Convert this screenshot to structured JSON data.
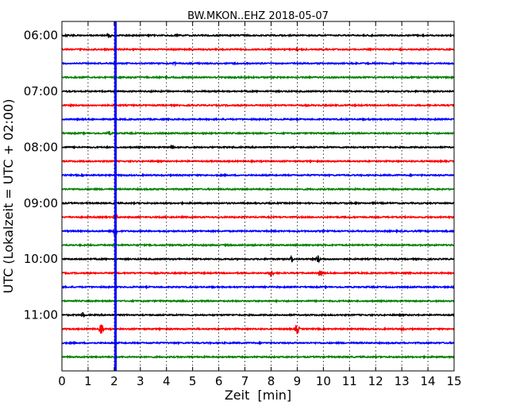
{
  "chart_data": {
    "type": "line",
    "title": "BW.MKON..EHZ 2018-05-07",
    "xlabel": "Zeit  [min]",
    "ylabel": "UTC (Lokalzeit = UTC + 02:00)",
    "x_ticks": [
      0,
      1,
      2,
      3,
      4,
      5,
      6,
      7,
      8,
      9,
      10,
      11,
      12,
      13,
      14,
      15
    ],
    "xlim": [
      0,
      15
    ],
    "ylim_hours": [
      "05:45",
      "12:00"
    ],
    "grid": "vertical dotted",
    "legend": "none",
    "trace_interval_minutes": 15,
    "y_tick_labels": [
      "06:00",
      "07:00",
      "08:00",
      "09:00",
      "10:00",
      "11:00"
    ],
    "trace_start_times": [
      "06:00",
      "06:15",
      "06:30",
      "06:45",
      "07:00",
      "07:15",
      "07:30",
      "07:45",
      "08:00",
      "08:15",
      "08:30",
      "08:45",
      "09:00",
      "09:15",
      "09:30",
      "09:45",
      "10:00",
      "10:15",
      "10:30",
      "10:45",
      "11:00",
      "11:15",
      "11:30",
      "11:45"
    ],
    "trace_colors_cycle": [
      "#000000",
      "#ff0000",
      "#0000ff",
      "#008000"
    ],
    "marker_line": {
      "x_min": 2.05,
      "color": "#0000ff"
    },
    "notable_events": [
      {
        "trace": "06:00",
        "x": 1.8,
        "amplitude": 0.4
      },
      {
        "trace": "06:15",
        "x": 9.0,
        "amplitude": 0.5
      },
      {
        "trace": "06:30",
        "x": 4.3,
        "amplitude": 0.3
      },
      {
        "trace": "07:45",
        "x": 1.8,
        "amplitude": 0.35
      },
      {
        "trace": "08:00",
        "x": 4.2,
        "amplitude": 0.4
      },
      {
        "trace": "09:15",
        "x": 2.05,
        "amplitude": 0.6
      },
      {
        "trace": "09:30",
        "x": 2.05,
        "amplitude": 1.3
      },
      {
        "trace": "10:00",
        "x": 8.8,
        "amplitude": 0.5
      },
      {
        "trace": "10:00",
        "x": 9.8,
        "amplitude": 0.6
      },
      {
        "trace": "10:15",
        "x": 8.0,
        "amplitude": 0.7
      },
      {
        "trace": "10:15",
        "x": 9.9,
        "amplitude": 0.6
      },
      {
        "trace": "11:00",
        "x": 0.8,
        "amplitude": 0.4
      },
      {
        "trace": "11:15",
        "x": 1.5,
        "amplitude": 0.8
      },
      {
        "trace": "11:15",
        "x": 9.0,
        "amplitude": 0.8
      },
      {
        "trace": "11:15",
        "x": 13.0,
        "amplitude": 0.3
      }
    ]
  }
}
